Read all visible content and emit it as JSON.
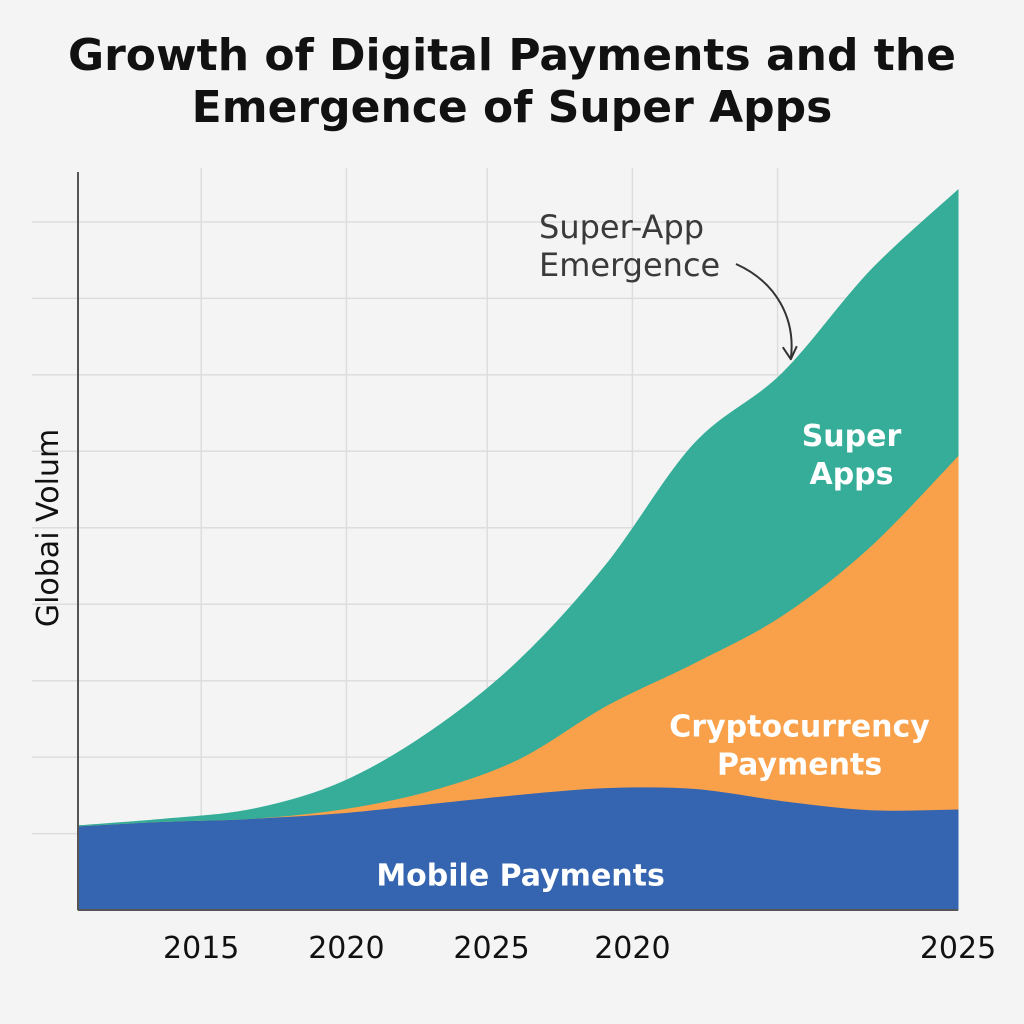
{
  "chart_data": {
    "type": "area",
    "stacked": true,
    "title": "Growth of Digital Payments and the Emergence of Super Apps",
    "title_lines": [
      "Growth of Digital Payments and the",
      "Emergence of Super Apps"
    ],
    "xlabel": "",
    "ylabel": "Globai Volum",
    "x_tick_labels": [
      "2015",
      "2020",
      "2025",
      "2020",
      "2025"
    ],
    "x": [
      0,
      0.1,
      0.2,
      0.3,
      0.4,
      0.5,
      0.6,
      0.7,
      0.8,
      0.9,
      1.0
    ],
    "x_note": "x axis tick labels are non-monotonic in the image; x is expressed as fraction of the axis span",
    "ylim": [
      0,
      100
    ],
    "xlim": [
      0,
      1
    ],
    "grid": true,
    "series": [
      {
        "name": "Mobile Payments",
        "color": "#3565b0",
        "values": [
          11,
          11.6,
          12,
          12.7,
          13.9,
          15.1,
          16,
          15.9,
          14.3,
          13.1,
          13.2
        ]
      },
      {
        "name": "Cryptocurrency Payments",
        "color": "#f9a04a",
        "values": [
          0,
          0,
          0,
          0.5,
          1.7,
          4.6,
          10.7,
          16.4,
          24.2,
          34.4,
          46.2
        ]
      },
      {
        "name": "Super Apps",
        "color": "#35ad98",
        "values": [
          0,
          0.3,
          1.2,
          3.5,
          7.7,
          12.8,
          18.4,
          28.6,
          31.6,
          36,
          34.7
        ]
      }
    ],
    "annotations": [
      {
        "text_lines": [
          "Super-App",
          "Emergence"
        ],
        "arrow_to": {
          "x": 0.81,
          "y": 72
        }
      }
    ],
    "area_labels": [
      {
        "series": "Mobile Payments",
        "lines": [
          "Mobile Payments"
        ]
      },
      {
        "series": "Cryptocurrency Payments",
        "lines": [
          "Cryptocurrency",
          "Payments"
        ]
      },
      {
        "series": "Super Apps",
        "lines": [
          "Super",
          "Apps"
        ]
      }
    ],
    "colors": {
      "background": "#f4f4f4",
      "grid": "#dddddd",
      "axis": "#555555"
    }
  }
}
